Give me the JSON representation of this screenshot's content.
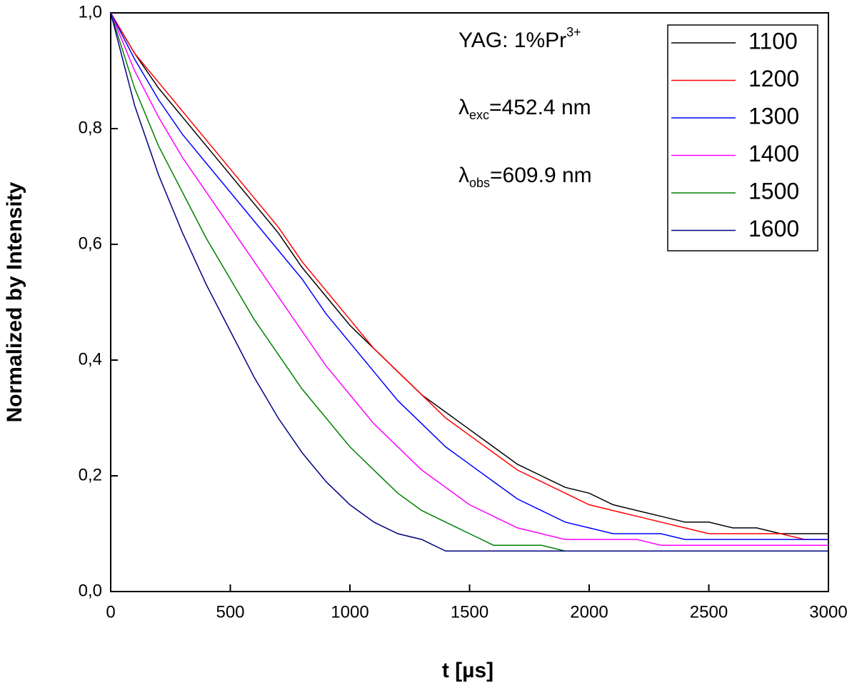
{
  "chart_data": {
    "type": "line",
    "x_label": "t [µs]",
    "y_label": "Normalized by Intensity",
    "annotations": [
      [
        "YAG: 1%Pr",
        "3+"
      ],
      [
        "λ",
        "exc",
        "=452.4 nm"
      ],
      [
        "λ",
        "obs",
        "=609.9 nm"
      ]
    ],
    "x": [
      0,
      100,
      200,
      300,
      400,
      500,
      600,
      700,
      800,
      900,
      1000,
      1100,
      1200,
      1300,
      1400,
      1500,
      1600,
      1700,
      1800,
      1900,
      2000,
      2100,
      2200,
      2300,
      2400,
      2500,
      2600,
      2700,
      2800,
      2900,
      3000
    ],
    "series": [
      {
        "name": "1100",
        "color": "#000000",
        "values": [
          1,
          0.93,
          0.87,
          0.82,
          0.77,
          0.72,
          0.67,
          0.62,
          0.56,
          0.51,
          0.46,
          0.42,
          0.38,
          0.34,
          0.31,
          0.28,
          0.25,
          0.22,
          0.2,
          0.18,
          0.17,
          0.15,
          0.14,
          0.13,
          0.12,
          0.12,
          0.11,
          0.11,
          0.1,
          0.1,
          0.1
        ]
      },
      {
        "name": "1200",
        "color": "#ff0000",
        "values": [
          1,
          0.93,
          0.88,
          0.83,
          0.78,
          0.73,
          0.68,
          0.63,
          0.57,
          0.52,
          0.47,
          0.42,
          0.38,
          0.34,
          0.3,
          0.27,
          0.24,
          0.21,
          0.19,
          0.17,
          0.15,
          0.14,
          0.13,
          0.12,
          0.11,
          0.1,
          0.1,
          0.1,
          0.1,
          0.09,
          0.09
        ]
      },
      {
        "name": "1300",
        "color": "#0000ff",
        "values": [
          1,
          0.92,
          0.85,
          0.79,
          0.74,
          0.69,
          0.64,
          0.59,
          0.54,
          0.48,
          0.43,
          0.38,
          0.33,
          0.29,
          0.25,
          0.22,
          0.19,
          0.16,
          0.14,
          0.12,
          0.11,
          0.1,
          0.1,
          0.1,
          0.09,
          0.09,
          0.09,
          0.09,
          0.09,
          0.09,
          0.09
        ]
      },
      {
        "name": "1400",
        "color": "#ff00ff",
        "values": [
          1,
          0.9,
          0.82,
          0.75,
          0.69,
          0.63,
          0.57,
          0.51,
          0.45,
          0.39,
          0.34,
          0.29,
          0.25,
          0.21,
          0.18,
          0.15,
          0.13,
          0.11,
          0.1,
          0.09,
          0.09,
          0.09,
          0.09,
          0.08,
          0.08,
          0.08,
          0.08,
          0.08,
          0.08,
          0.08,
          0.08
        ]
      },
      {
        "name": "1500",
        "color": "#008000",
        "values": [
          1,
          0.87,
          0.77,
          0.69,
          0.61,
          0.54,
          0.47,
          0.41,
          0.35,
          0.3,
          0.25,
          0.21,
          0.17,
          0.14,
          0.12,
          0.1,
          0.08,
          0.08,
          0.08,
          0.07,
          0.07,
          0.07,
          0.07,
          0.07,
          0.07,
          0.07,
          0.07,
          0.07,
          0.07,
          0.07,
          0.07
        ]
      },
      {
        "name": "1600",
        "color": "#000080",
        "values": [
          1,
          0.84,
          0.72,
          0.62,
          0.53,
          0.45,
          0.37,
          0.3,
          0.24,
          0.19,
          0.15,
          0.12,
          0.1,
          0.09,
          0.07,
          0.07,
          0.07,
          0.07,
          0.07,
          0.07,
          0.07,
          0.07,
          0.07,
          0.07,
          0.07,
          0.07,
          0.07,
          0.07,
          0.07,
          0.07,
          0.07
        ]
      }
    ],
    "xlim": [
      0,
      3000
    ],
    "ylim": [
      0,
      1
    ],
    "xticks": [
      0,
      500,
      1000,
      1500,
      2000,
      2500,
      3000
    ],
    "yticks": [
      {
        "value": 0,
        "label": "0,0"
      },
      {
        "value": 0.2,
        "label": "0,2"
      },
      {
        "value": 0.4,
        "label": "0,4"
      },
      {
        "value": 0.6,
        "label": "0,6"
      },
      {
        "value": 0.8,
        "label": "0,8"
      },
      {
        "value": 1,
        "label": "1,0"
      }
    ],
    "legend": "upper right",
    "grid": false
  }
}
